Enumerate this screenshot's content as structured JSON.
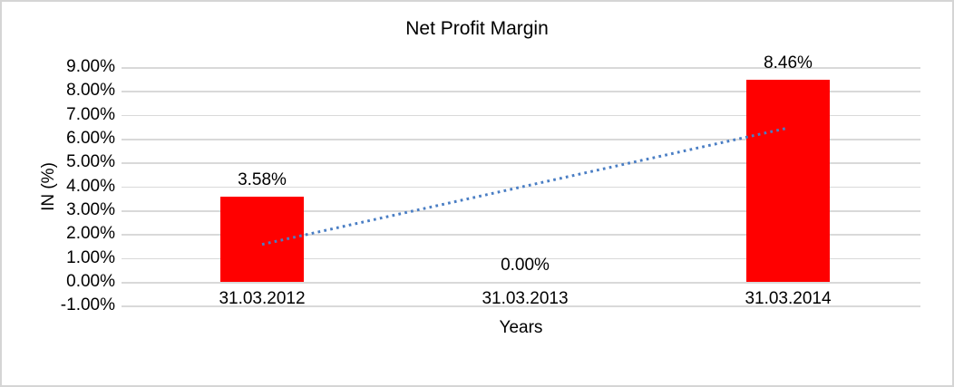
{
  "chart_data": {
    "type": "bar",
    "title": "Net Profit Margin",
    "xlabel": "Years",
    "ylabel": "IN (%)",
    "categories": [
      "31.03.2012",
      "31.03.2013",
      "31.03.2014"
    ],
    "values": [
      3.58,
      0.0,
      8.46
    ],
    "data_labels": [
      "3.58%",
      "0.00%",
      "8.46%"
    ],
    "ylim": [
      -1,
      9
    ],
    "ytick_step": 1,
    "ytick_labels": [
      "9.00%",
      "8.00%",
      "7.00%",
      "6.00%",
      "5.00%",
      "4.00%",
      "3.00%",
      "2.00%",
      "1.00%",
      "0.00%",
      "-1.00%"
    ],
    "grid": true,
    "legend": "none",
    "bar_color": "#FF0000",
    "trendline": {
      "type": "linear",
      "style": "dotted",
      "color": "#4A7EC4",
      "start_pct": 1.57,
      "end_pct": 6.45
    }
  },
  "colors": {
    "background": "#FFFFFF",
    "border": "#D5D5D5",
    "gridline": "#D9D9D9",
    "text": "#000000"
  }
}
